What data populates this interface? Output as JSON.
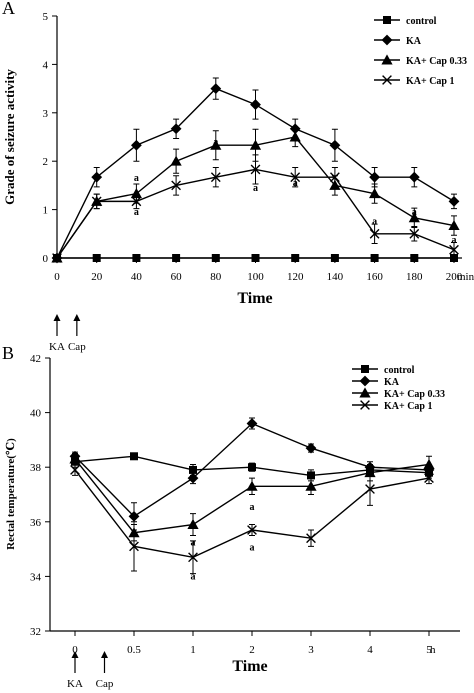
{
  "chart_data": [
    {
      "type": "line",
      "panel_label": "A",
      "xlabel": "Time",
      "ylabel": "Grade of seizure activity",
      "xlim": [
        0,
        200
      ],
      "ylim": [
        0,
        5
      ],
      "y_ticks": [
        "0",
        "1",
        "2",
        "3",
        "4",
        "5"
      ],
      "x": [
        0,
        20,
        40,
        60,
        80,
        100,
        120,
        140,
        160,
        180,
        200
      ],
      "x_tick_labels": [
        "0",
        "20",
        "40",
        "60",
        "80",
        "100",
        "120",
        "140",
        "160",
        "180",
        "200"
      ],
      "x_unit": "min",
      "legend_position": "top-right",
      "arrows": [
        {
          "label": "KA",
          "x": 0
        },
        {
          "label": "Cap",
          "x": 10
        }
      ],
      "series": [
        {
          "name": "control",
          "marker": "square",
          "values": [
            0,
            0,
            0,
            0,
            0,
            0,
            0,
            0,
            0,
            0,
            0
          ],
          "errors": [
            0,
            0,
            0,
            0,
            0,
            0,
            0,
            0,
            0,
            0,
            0
          ]
        },
        {
          "name": "KA",
          "marker": "diamond",
          "values": [
            0,
            1.67,
            2.33,
            2.67,
            3.5,
            3.17,
            2.67,
            2.33,
            1.67,
            1.67,
            1.17
          ],
          "errors": [
            0,
            0.2,
            0.33,
            0.2,
            0.22,
            0.3,
            0.2,
            0.33,
            0.2,
            0.2,
            0.15
          ]
        },
        {
          "name": "KA+ Cap 0.33",
          "marker": "triangle",
          "values": [
            0,
            1.17,
            1.33,
            2.0,
            2.33,
            2.33,
            2.5,
            1.5,
            1.33,
            0.83,
            0.67
          ],
          "errors": [
            0,
            0.15,
            0.2,
            0.25,
            0.3,
            0.33,
            0.2,
            0.2,
            0.2,
            0.2,
            0.2
          ]
        },
        {
          "name": "KA+ Cap 1",
          "marker": "x",
          "values": [
            0,
            1.17,
            1.17,
            1.5,
            1.67,
            1.83,
            1.67,
            1.67,
            0.5,
            0.5,
            0.17
          ],
          "errors": [
            0,
            0.15,
            0.15,
            0.2,
            0.2,
            0.3,
            0.2,
            0.2,
            0.2,
            0.15,
            0.15
          ]
        }
      ],
      "annotations": [
        {
          "text": "a",
          "x": 40,
          "y": 1.65
        },
        {
          "text": "a",
          "x": 40,
          "y": 0.95
        },
        {
          "text": "a",
          "x": 80,
          "y": 2.4
        },
        {
          "text": "a",
          "x": 100,
          "y": 2.35
        },
        {
          "text": "a",
          "x": 100,
          "y": 1.45
        },
        {
          "text": "a",
          "x": 120,
          "y": 1.55
        },
        {
          "text": "a",
          "x": 160,
          "y": 0.75
        },
        {
          "text": "a",
          "x": 180,
          "y": 0.95
        },
        {
          "text": "a",
          "x": 200,
          "y": 0.37
        }
      ]
    },
    {
      "type": "line",
      "panel_label": "B",
      "xlabel": "Time",
      "ylabel": "Rectal temperature(℃)",
      "ylim": [
        32,
        42
      ],
      "y_ticks": [
        "32",
        "34",
        "36",
        "38",
        "40",
        "42"
      ],
      "x_tick_labels": [
        "0",
        "0.5",
        "1",
        "2",
        "3",
        "4",
        "5"
      ],
      "x_unit": "h",
      "legend_position": "top-right",
      "arrows": [
        {
          "label": "KA",
          "x_index": 0
        },
        {
          "label": "Cap",
          "x_index": 0.5
        }
      ],
      "series": [
        {
          "name": "control",
          "marker": "square",
          "values": [
            38.2,
            38.4,
            37.9,
            38.0,
            37.7,
            37.9,
            37.8
          ],
          "errors": [
            0.2,
            0.1,
            0.2,
            0.15,
            0.2,
            0.2,
            0.2
          ]
        },
        {
          "name": "KA",
          "marker": "diamond",
          "values": [
            38.4,
            36.2,
            37.6,
            39.6,
            38.7,
            38.0,
            37.9
          ],
          "errors": [
            0.15,
            0.5,
            0.2,
            0.2,
            0.15,
            0.2,
            0.2
          ]
        },
        {
          "name": "KA+ Cap 0.33",
          "marker": "triangle",
          "values": [
            38.3,
            35.6,
            35.9,
            37.3,
            37.3,
            37.8,
            38.1
          ],
          "errors": [
            0.2,
            0.3,
            0.4,
            0.3,
            0.3,
            0.3,
            0.3
          ]
        },
        {
          "name": "KA+ Cap 1",
          "marker": "x",
          "values": [
            37.9,
            35.1,
            34.7,
            35.7,
            35.4,
            37.2,
            37.6
          ],
          "errors": [
            0.2,
            0.9,
            0.6,
            0.2,
            0.3,
            0.6,
            0.2
          ]
        }
      ],
      "annotations": [
        {
          "text": "a",
          "x_index": 2,
          "y": 35.25
        },
        {
          "text": "a",
          "x_index": 2,
          "y": 34.0
        },
        {
          "text": "a",
          "x_index": 3,
          "y": 36.55
        },
        {
          "text": "a",
          "x_index": 3,
          "y": 35.05
        }
      ]
    }
  ]
}
